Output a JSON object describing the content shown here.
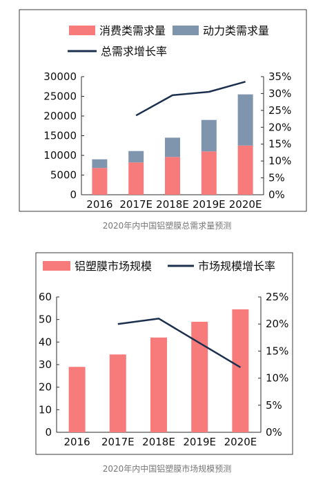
{
  "charts": [
    {
      "caption": "2020年内中国铝塑膜总需求量预测",
      "colors": {
        "consumer": "#F77B7B",
        "power": "#7F95AE",
        "line": "#1B2F4E"
      },
      "chart_data": {
        "type": "bar",
        "stacked": true,
        "categories": [
          "2016",
          "2017E",
          "2018E",
          "2019E",
          "2020E"
        ],
        "series": [
          {
            "name": "消费类需求量",
            "type": "bar",
            "axis": "left",
            "values": [
              6800,
              8200,
              9600,
              11000,
              12500
            ]
          },
          {
            "name": "动力类需求量",
            "type": "bar",
            "axis": "left",
            "values": [
              2200,
              2900,
              4900,
              8000,
              13000
            ]
          },
          {
            "name": "总需求增长率",
            "type": "line",
            "axis": "right",
            "values": [
              null,
              23.5,
              29.5,
              30.5,
              33.5
            ]
          }
        ],
        "y_left": {
          "ticks": [
            "0",
            "5000",
            "10000",
            "15000",
            "20000",
            "25000",
            "30000"
          ],
          "min": 0,
          "max": 30000
        },
        "y_right": {
          "ticks": [
            "0%",
            "5%",
            "10%",
            "15%",
            "20%",
            "25%",
            "30%",
            "35%"
          ],
          "min": 0,
          "max": 35
        },
        "legend_position": "top",
        "grid": false
      }
    },
    {
      "caption": "2020年内中国铝塑膜市场规模预测",
      "colors": {
        "bar": "#F77B7B",
        "line": "#1B2F4E"
      },
      "chart_data": {
        "type": "bar",
        "categories": [
          "2016",
          "2017E",
          "2018E",
          "2019E",
          "2020E"
        ],
        "series": [
          {
            "name": "铝塑膜市场规模",
            "type": "bar",
            "axis": "left",
            "values": [
              29,
              34.5,
              42,
              49,
              54.5
            ]
          },
          {
            "name": "市场规模增长率",
            "type": "line",
            "axis": "right",
            "values": [
              null,
              20,
              21,
              16.5,
              12
            ]
          }
        ],
        "y_left": {
          "ticks": [
            "0",
            "10",
            "20",
            "30",
            "40",
            "50",
            "60"
          ],
          "min": 0,
          "max": 60
        },
        "y_right": {
          "ticks": [
            "0%",
            "5%",
            "10%",
            "15%",
            "20%",
            "25%"
          ],
          "min": 0,
          "max": 25
        },
        "legend_position": "top",
        "grid": false
      }
    }
  ]
}
